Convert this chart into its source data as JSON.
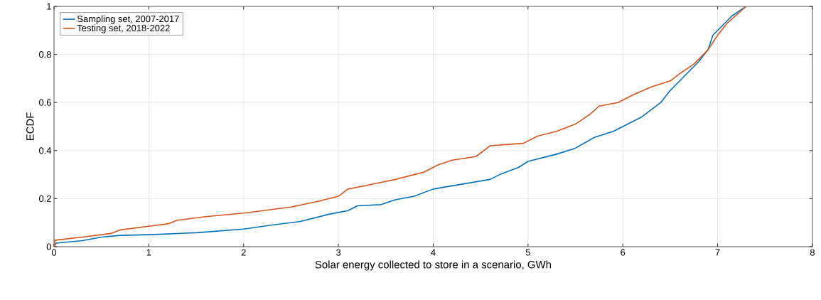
{
  "chart_data": {
    "type": "line",
    "xlabel": "Solar energy collected to store in a scenario, GWh",
    "ylabel": "ECDF",
    "xlim": [
      0,
      8
    ],
    "ylim": [
      0,
      1
    ],
    "xticks": [
      0,
      1,
      2,
      3,
      4,
      5,
      6,
      7,
      8
    ],
    "yticks": [
      0,
      0.2,
      0.4,
      0.6,
      0.8,
      1
    ],
    "grid": true,
    "legend": "top left",
    "line_style": "solid",
    "marker": "none",
    "series": [
      {
        "name": "Sampling set, 2007-2017",
        "color": "#0072bd",
        "x": [
          0,
          0.02,
          0.3,
          0.5,
          0.7,
          1,
          1.5,
          2,
          2.3,
          2.6,
          2.9,
          3.1,
          3.2,
          3.45,
          3.6,
          3.8,
          4,
          4.3,
          4.6,
          4.7,
          4.9,
          5.0,
          5.3,
          5.5,
          5.7,
          5.9,
          6.0,
          6.2,
          6.4,
          6.5,
          6.6,
          6.7,
          6.8,
          6.9,
          6.95,
          7.05,
          7.15,
          7.3
        ],
        "values": [
          0,
          0.015,
          0.025,
          0.04,
          0.047,
          0.05,
          0.058,
          0.073,
          0.09,
          0.105,
          0.135,
          0.15,
          0.17,
          0.175,
          0.195,
          0.21,
          0.24,
          0.26,
          0.28,
          0.3,
          0.33,
          0.355,
          0.385,
          0.41,
          0.455,
          0.48,
          0.5,
          0.54,
          0.6,
          0.65,
          0.69,
          0.73,
          0.77,
          0.82,
          0.88,
          0.92,
          0.96,
          1.0
        ]
      },
      {
        "name": "Testing set, 2018-2022",
        "color": "#d95319",
        "x": [
          0,
          0.01,
          0.3,
          0.6,
          0.7,
          1,
          1.2,
          1.3,
          1.6,
          2,
          2.5,
          2.8,
          3,
          3.1,
          3.3,
          3.6,
          3.9,
          4.05,
          4.2,
          4.45,
          4.6,
          4.95,
          5.1,
          5.3,
          5.5,
          5.65,
          5.75,
          5.95,
          6.1,
          6.3,
          6.5,
          6.6,
          6.75,
          6.9,
          7.0,
          7.1,
          7.3
        ],
        "values": [
          0,
          0.027,
          0.04,
          0.055,
          0.07,
          0.085,
          0.095,
          0.11,
          0.125,
          0.14,
          0.165,
          0.19,
          0.21,
          0.24,
          0.255,
          0.28,
          0.31,
          0.34,
          0.36,
          0.375,
          0.42,
          0.43,
          0.46,
          0.48,
          0.51,
          0.55,
          0.585,
          0.6,
          0.63,
          0.665,
          0.69,
          0.72,
          0.76,
          0.82,
          0.88,
          0.93,
          1.0
        ]
      }
    ]
  }
}
